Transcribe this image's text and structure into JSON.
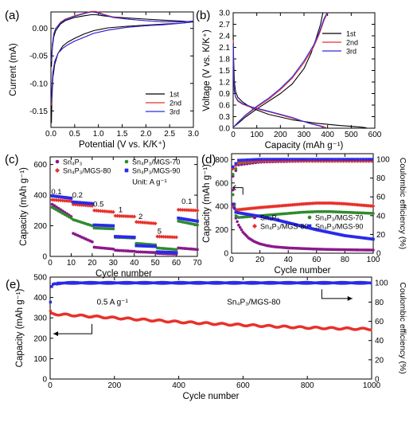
{
  "chart_data": [
    {
      "panel": "(a)",
      "type": "line",
      "xlabel": "Potential (V vs. K/K⁺)",
      "ylabel": "Current (mA)",
      "xlim": [
        0.0,
        3.0
      ],
      "ylim": [
        -0.18,
        0.03
      ],
      "xticks": [
        "0.0",
        "0.5",
        "1.0",
        "1.5",
        "2.0",
        "2.5",
        "3.0"
      ],
      "yticks": [
        "-0.15",
        "-0.10",
        "-0.05",
        "0.00"
      ],
      "legend": "bottom-right",
      "series": [
        {
          "name": "1st",
          "color": "#000000",
          "x": [
            0.01,
            0.03,
            0.06,
            0.1,
            0.2,
            0.3,
            0.5,
            0.7,
            0.85,
            0.95,
            1.1,
            1.3,
            1.6,
            2.0,
            2.4,
            2.8,
            2.95,
            3.0,
            2.8,
            2.4,
            2.0,
            1.6,
            1.2,
            0.9,
            0.7,
            0.5,
            0.35,
            0.25,
            0.15,
            0.08,
            0.04,
            0.02,
            0.01
          ],
          "y": [
            -0.07,
            -0.035,
            -0.015,
            -0.004,
            0.008,
            0.014,
            0.02,
            0.023,
            0.025,
            0.025,
            0.023,
            0.021,
            0.019,
            0.017,
            0.015,
            0.013,
            0.012,
            0.012,
            0.01,
            0.008,
            0.006,
            0.004,
            0.001,
            -0.004,
            -0.01,
            -0.018,
            -0.025,
            -0.032,
            -0.045,
            -0.065,
            -0.09,
            -0.13,
            -0.172
          ]
        },
        {
          "name": "2nd",
          "color": "#e8312a",
          "x": [
            0.01,
            0.03,
            0.06,
            0.1,
            0.2,
            0.3,
            0.5,
            0.7,
            0.85,
            0.95,
            1.1,
            1.3,
            1.6,
            2.0,
            2.4,
            2.8,
            2.95,
            3.0,
            2.8,
            2.4,
            2.0,
            1.6,
            1.2,
            0.9,
            0.7,
            0.5,
            0.35,
            0.25,
            0.15,
            0.08,
            0.04,
            0.02,
            0.01
          ],
          "y": [
            -0.06,
            -0.03,
            -0.01,
            0.0,
            0.011,
            0.017,
            0.023,
            0.028,
            0.031,
            0.031,
            0.026,
            0.021,
            0.017,
            0.014,
            0.012,
            0.012,
            0.013,
            0.014,
            0.01,
            0.007,
            0.005,
            0.002,
            -0.003,
            -0.009,
            -0.016,
            -0.023,
            -0.03,
            -0.036,
            -0.045,
            -0.06,
            -0.08,
            -0.11,
            -0.14
          ]
        },
        {
          "name": "3rd",
          "color": "#2a2ae8",
          "x": [
            0.01,
            0.03,
            0.06,
            0.1,
            0.2,
            0.3,
            0.5,
            0.7,
            0.85,
            0.95,
            1.1,
            1.3,
            1.6,
            2.0,
            2.4,
            2.8,
            2.95,
            3.0,
            2.8,
            2.4,
            2.0,
            1.6,
            1.2,
            0.9,
            0.7,
            0.5,
            0.35,
            0.25,
            0.15,
            0.08,
            0.04,
            0.02,
            0.01
          ],
          "y": [
            -0.06,
            -0.03,
            -0.01,
            0.0,
            0.01,
            0.016,
            0.022,
            0.027,
            0.03,
            0.029,
            0.025,
            0.02,
            0.017,
            0.014,
            0.012,
            0.012,
            0.013,
            0.013,
            0.01,
            0.007,
            0.005,
            0.002,
            -0.003,
            -0.009,
            -0.016,
            -0.023,
            -0.03,
            -0.036,
            -0.045,
            -0.06,
            -0.08,
            -0.11,
            -0.135
          ]
        }
      ]
    },
    {
      "panel": "(b)",
      "type": "line",
      "xlabel": "Capacity (mAh g⁻¹)",
      "ylabel": "Voltage (V vs. K/K⁺)",
      "xlim": [
        0,
        600
      ],
      "ylim": [
        0.0,
        3.0
      ],
      "xticks": [
        "0",
        "100",
        "200",
        "300",
        "400",
        "500",
        "600"
      ],
      "yticks": [
        "0.0",
        "0.3",
        "0.6",
        "0.9",
        "1.2",
        "1.5",
        "1.8",
        "2.1",
        "2.4",
        "2.7",
        "3.0"
      ],
      "legend": "top-right",
      "series": [
        {
          "name": "1st",
          "color": "#000000",
          "x": [
            0,
            2,
            5,
            10,
            20,
            40,
            80,
            150,
            250,
            350,
            450,
            540,
            565,
            null,
            0,
            20,
            50,
            100,
            150,
            200,
            250,
            300,
            330,
            350,
            370,
            380
          ],
          "y": [
            2.45,
            1.8,
            1.2,
            0.95,
            0.8,
            0.68,
            0.52,
            0.36,
            0.22,
            0.13,
            0.07,
            0.03,
            0.01,
            null,
            0.02,
            0.12,
            0.28,
            0.5,
            0.7,
            0.9,
            1.15,
            1.55,
            1.95,
            2.3,
            2.7,
            3.0
          ]
        },
        {
          "name": "2nd",
          "color": "#e8312a",
          "x": [
            0,
            2,
            5,
            10,
            20,
            40,
            80,
            150,
            250,
            330,
            380,
            395,
            null,
            0,
            20,
            50,
            100,
            150,
            200,
            250,
            300,
            340,
            365,
            385,
            400
          ],
          "y": [
            2.3,
            1.4,
            0.95,
            0.8,
            0.7,
            0.62,
            0.53,
            0.43,
            0.26,
            0.12,
            0.05,
            0.01,
            null,
            0.02,
            0.14,
            0.32,
            0.55,
            0.75,
            1.0,
            1.3,
            1.7,
            2.1,
            2.45,
            2.8,
            3.0
          ]
        },
        {
          "name": "3rd",
          "color": "#2a2ae8",
          "x": [
            0,
            2,
            5,
            10,
            20,
            40,
            80,
            150,
            250,
            320,
            370,
            385,
            null,
            0,
            20,
            50,
            100,
            150,
            200,
            250,
            300,
            340,
            365,
            385,
            398
          ],
          "y": [
            2.2,
            1.35,
            0.95,
            0.82,
            0.72,
            0.64,
            0.55,
            0.44,
            0.28,
            0.13,
            0.05,
            0.01,
            null,
            0.02,
            0.15,
            0.33,
            0.57,
            0.78,
            1.03,
            1.33,
            1.75,
            2.15,
            2.5,
            2.85,
            3.0
          ]
        }
      ]
    },
    {
      "panel": "(c)",
      "type": "scatter",
      "xlabel": "Cycle number",
      "ylabel": "Capacity (mAh g⁻¹)",
      "xlim": [
        0,
        70
      ],
      "ylim": [
        0,
        650
      ],
      "xticks": [
        "0",
        "10",
        "20",
        "30",
        "40",
        "50",
        "60",
        "70"
      ],
      "yticks": [
        "0",
        "200",
        "400",
        "600"
      ],
      "legend": "top",
      "unit_text": "Unit: A g⁻¹",
      "rate_labels": [
        {
          "text": "0.1",
          "x": 3,
          "y": 405
        },
        {
          "text": "0.2",
          "x": 13,
          "y": 385
        },
        {
          "text": "0.5",
          "x": 23,
          "y": 325
        },
        {
          "text": "1",
          "x": 33.5,
          "y": 288
        },
        {
          "text": "2",
          "x": 43,
          "y": 245
        },
        {
          "text": "5",
          "x": 52,
          "y": 148
        },
        {
          "text": "0.1",
          "x": 65,
          "y": 342
        }
      ],
      "series": [
        {
          "name": "Sn₄P₃",
          "color": "#8b1a8b",
          "marker": "circle",
          "segments": [
            [
              1,
              10,
              340,
              260
            ],
            [
              11,
              20,
              150,
              95
            ],
            [
              21,
              30,
              60,
              48
            ],
            [
              31,
              40,
              40,
              33
            ],
            [
              41,
              50,
              30,
              25
            ],
            [
              51,
              60,
              20,
              15
            ],
            [
              61,
              70,
              55,
              45
            ]
          ]
        },
        {
          "name": "Sn₄P₃/MGS-70",
          "color": "#2e8b2e",
          "marker": "circle",
          "segments": [
            [
              1,
              10,
              320,
              250
            ],
            [
              11,
              20,
              240,
              200
            ],
            [
              21,
              30,
              185,
              180
            ],
            [
              31,
              40,
              125,
              120
            ],
            [
              41,
              50,
              85,
              75
            ],
            [
              51,
              60,
              55,
              45
            ],
            [
              61,
              70,
              230,
              205
            ]
          ]
        },
        {
          "name": "Sn₄P₃/MGS-80",
          "color": "#e8312a",
          "marker": "diamond",
          "segments": [
            [
              1,
              10,
              370,
              360
            ],
            [
              11,
              20,
              340,
              330
            ],
            [
              21,
              30,
              300,
              290
            ],
            [
              31,
              40,
              265,
              260
            ],
            [
              41,
              50,
              225,
              215
            ],
            [
              51,
              60,
              130,
              125
            ],
            [
              61,
              70,
              305,
              300
            ]
          ]
        },
        {
          "name": "Sn₄P₃/MGS-90",
          "color": "#2a2ae8",
          "marker": "square",
          "segments": [
            [
              1,
              10,
              395,
              380
            ],
            [
              11,
              20,
              355,
              345
            ],
            [
              21,
              30,
              205,
              200
            ],
            [
              31,
              40,
              130,
              125
            ],
            [
              41,
              50,
              70,
              65
            ],
            [
              51,
              60,
              30,
              25
            ],
            [
              61,
              70,
              250,
              230
            ]
          ]
        }
      ]
    },
    {
      "panel": "(d)",
      "type": "scatter",
      "xlabel": "Cycle number",
      "ylabel": "Capacity (mAh g⁻¹)",
      "ylabel_right": "Coulombic efficiency (%)",
      "xlim": [
        0,
        100
      ],
      "ylim": [
        0,
        850
      ],
      "ylim_right": [
        0,
        106
      ],
      "xticks": [
        "0",
        "20",
        "40",
        "60",
        "80",
        "100"
      ],
      "yticks": [
        "0",
        "200",
        "400",
        "600",
        "800"
      ],
      "yticks_right": [
        "0",
        "20",
        "40",
        "60",
        "80",
        "100"
      ],
      "legend": "top",
      "series": [
        {
          "name": "Sn₄P₃",
          "color": "#8b1a8b",
          "marker": "circle",
          "x": [
            1,
            3,
            5,
            8,
            12,
            16,
            20,
            25,
            30,
            40,
            50,
            60,
            70,
            80,
            90,
            100
          ],
          "y": [
            540,
            300,
            240,
            180,
            130,
            100,
            80,
            65,
            55,
            45,
            40,
            35,
            32,
            30,
            28,
            27
          ],
          "ce_x": [
            1,
            5,
            20,
            50,
            100
          ],
          "ce_y": [
            82,
            94,
            97,
            98,
            98
          ]
        },
        {
          "name": "Sn₄P₃/MGS-70",
          "color": "#2e8b2e",
          "marker": "circle",
          "x": [
            1,
            3,
            5,
            10,
            20,
            30,
            40,
            50,
            60,
            70,
            80,
            90,
            100
          ],
          "y": [
            500,
            320,
            305,
            310,
            320,
            330,
            340,
            350,
            355,
            355,
            350,
            345,
            340
          ],
          "ce_x": [
            1,
            5,
            20,
            50,
            100
          ],
          "ce_y": [
            84,
            96,
            98,
            98,
            98
          ]
        },
        {
          "name": "Sn₄P₃/MGS-80",
          "color": "#e8312a",
          "marker": "diamond",
          "x": [
            1,
            3,
            5,
            10,
            20,
            30,
            40,
            50,
            60,
            70,
            80,
            90,
            100
          ],
          "y": [
            400,
            370,
            372,
            378,
            390,
            400,
            410,
            420,
            428,
            428,
            422,
            412,
            402
          ],
          "ce_x": [
            1,
            5,
            20,
            50,
            100
          ],
          "ce_y": [
            90,
            97,
            98,
            98,
            98
          ]
        },
        {
          "name": "Sn₄P₃/MGS-90",
          "color": "#2a2ae8",
          "marker": "square",
          "x": [
            1,
            3,
            5,
            10,
            20,
            30,
            40,
            50,
            60,
            70,
            80,
            90,
            100
          ],
          "y": [
            420,
            350,
            345,
            335,
            315,
            290,
            260,
            230,
            200,
            175,
            150,
            135,
            120
          ],
          "ce_x": [
            1,
            5,
            20,
            50,
            100
          ],
          "ce_y": [
            92,
            99,
            100,
            100,
            100
          ]
        }
      ]
    },
    {
      "panel": "(e)",
      "type": "scatter",
      "xlabel": "Cycle number",
      "ylabel": "Capacity (mAh g⁻¹)",
      "ylabel_right": "Coulombic efficiency (%)",
      "xlim": [
        0,
        1000
      ],
      "ylim": [
        0,
        500
      ],
      "ylim_right": [
        0,
        106
      ],
      "xticks": [
        "0",
        "200",
        "400",
        "600",
        "800",
        "1000"
      ],
      "yticks": [
        "0",
        "100",
        "200",
        "300",
        "400",
        "500"
      ],
      "yticks_right": [
        "0",
        "20",
        "40",
        "60",
        "80",
        "100"
      ],
      "annotation_rate": "0.5 A g⁻¹",
      "annotation_sample": "Sn₄P₃/MGS-80",
      "series": [
        {
          "name": "Sn₄P₃/MGS-80",
          "color": "#e8312a",
          "x": [
            1,
            5,
            20,
            100,
            200,
            300,
            400,
            500,
            600,
            700,
            800,
            900,
            1000
          ],
          "y": [
            330,
            320,
            318,
            310,
            300,
            290,
            280,
            272,
            265,
            258,
            252,
            248,
            245
          ],
          "ce_x": [
            1,
            3,
            10,
            50,
            200,
            400,
            600,
            800,
            1000
          ],
          "ce_y": [
            80,
            95,
            99,
            100,
            100,
            100,
            100,
            100,
            100
          ]
        }
      ]
    }
  ]
}
